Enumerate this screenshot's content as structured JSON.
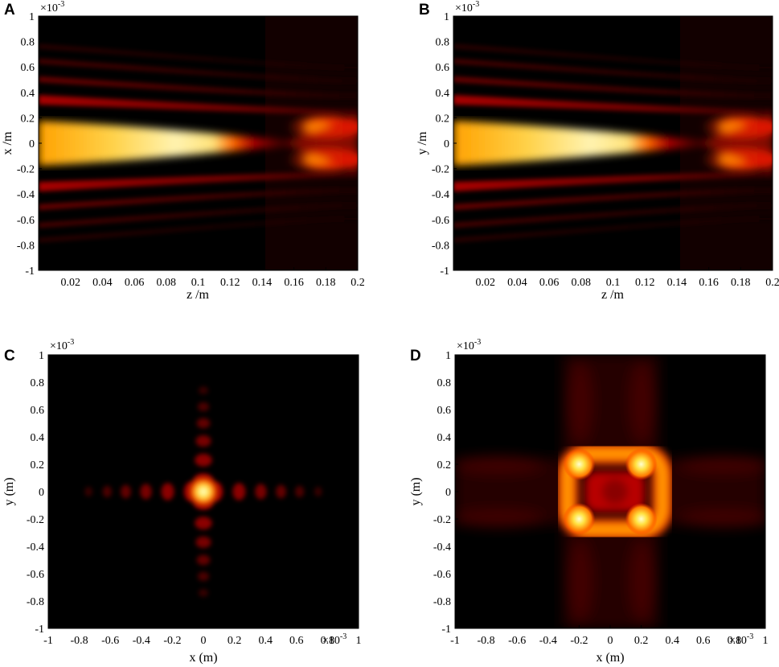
{
  "chart_data": [
    {
      "panel": "A",
      "type": "heatmap",
      "title": "",
      "xlabel": "z /m",
      "ylabel": "x /m",
      "xlim": [
        0,
        0.2
      ],
      "ylim": [
        -1,
        1
      ],
      "x_ticks": [
        "0.02",
        "0.04",
        "0.06",
        "0.08",
        "0.1",
        "0.12",
        "0.14",
        "0.16",
        "0.18",
        "0.2"
      ],
      "y_ticks": [
        "1",
        "0.8",
        "0.6",
        "0.4",
        "0.2",
        "0",
        "-0.2",
        "-0.4",
        "-0.6",
        "-0.8",
        "-1"
      ],
      "y_exponent": "×10",
      "y_exponent_power": "-3",
      "colormap": "hot",
      "description_values": {
        "focus_z": 0.1,
        "split_peaks_x": [
          -0.13,
          0.13
        ]
      }
    },
    {
      "panel": "B",
      "type": "heatmap",
      "title": "",
      "xlabel": "z /m",
      "ylabel": "y /m",
      "xlim": [
        0,
        0.2
      ],
      "ylim": [
        -1,
        1
      ],
      "x_ticks": [
        "0.02",
        "0.04",
        "0.06",
        "0.08",
        "0.1",
        "0.12",
        "0.14",
        "0.16",
        "0.18",
        "0.2"
      ],
      "y_ticks": [
        "1",
        "0.8",
        "0.6",
        "0.4",
        "0.2",
        "0",
        "-0.2",
        "-0.4",
        "-0.6",
        "-0.8",
        "-1"
      ],
      "y_exponent": "×10",
      "y_exponent_power": "-3",
      "colormap": "hot",
      "description_values": {
        "focus_z": 0.1,
        "split_peaks_y": [
          -0.13,
          0.13
        ]
      }
    },
    {
      "panel": "C",
      "type": "heatmap",
      "title": "",
      "xlabel": "x (m)",
      "ylabel": "y (m)",
      "xlim": [
        -1,
        1
      ],
      "ylim": [
        -1,
        1
      ],
      "x_ticks": [
        "-1",
        "-0.8",
        "-0.6",
        "-0.4",
        "-0.2",
        "0",
        "0.2",
        "0.4",
        "0.6",
        "0.8",
        "1"
      ],
      "y_ticks": [
        "1",
        "0.8",
        "0.6",
        "0.4",
        "0.2",
        "0",
        "-0.2",
        "-0.4",
        "-0.6",
        "-0.8",
        "-1"
      ],
      "x_exponent": "×10",
      "x_exponent_power": "-3",
      "y_exponent": "×10",
      "y_exponent_power": "-3",
      "colormap": "hot",
      "description_values": {
        "central_peak": [
          0,
          0
        ],
        "side_lobe_positions": [
          0.08,
          0.23,
          0.37,
          0.5,
          0.62,
          0.74
        ]
      }
    },
    {
      "panel": "D",
      "type": "heatmap",
      "title": "",
      "xlabel": "x (m)",
      "ylabel": "y (m)",
      "xlim": [
        -1,
        1
      ],
      "ylim": [
        -1,
        1
      ],
      "x_ticks": [
        "-1",
        "-0.8",
        "-0.6",
        "-0.4",
        "-0.2",
        "0",
        "0.2",
        "0.4",
        "0.6",
        "0.8",
        "1"
      ],
      "y_ticks": [
        "1",
        "0.8",
        "0.6",
        "0.4",
        "0.2",
        "0",
        "-0.2",
        "-0.4",
        "-0.6",
        "-0.8",
        "-1"
      ],
      "x_exponent": "×10",
      "x_exponent_power": "-3",
      "y_exponent": "×10",
      "y_exponent_power": "-3",
      "colormap": "hot",
      "description_values": {
        "corner_peaks": [
          [
            -0.2,
            0.2
          ],
          [
            0.2,
            0.2
          ],
          [
            -0.2,
            -0.2
          ],
          [
            0.2,
            -0.2
          ]
        ]
      }
    }
  ]
}
